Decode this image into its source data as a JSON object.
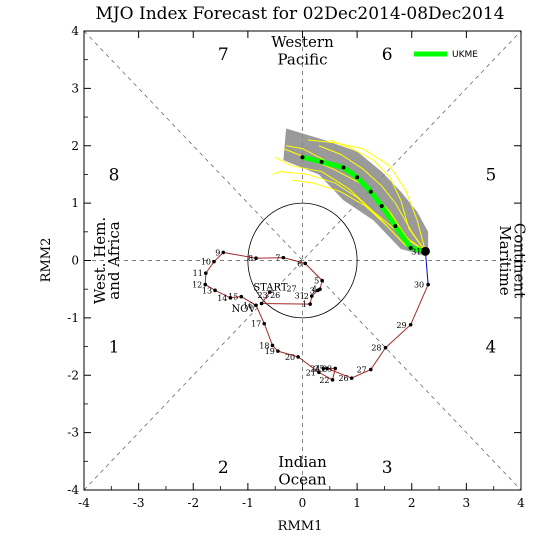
{
  "chart_data": {
    "type": "line",
    "title": "MJO Index Forecast for 02Dec2014-08Dec2014",
    "xlabel": "RMM1",
    "ylabel": "RMM2",
    "xlim": [
      -4,
      4
    ],
    "ylim": [
      -4,
      4
    ],
    "xticks": [
      "-4",
      "-3",
      "-2",
      "-1",
      "0",
      "1",
      "2",
      "3",
      "4"
    ],
    "yticks": [
      "-4",
      "-3",
      "-2",
      "-1",
      "0",
      "1",
      "2",
      "3",
      "4"
    ],
    "phases": [
      {
        "label": "1",
        "x": -3.45,
        "y": -1.5
      },
      {
        "label": "2",
        "x": -1.45,
        "y": -3.6
      },
      {
        "label": "3",
        "x": 1.55,
        "y": -3.6
      },
      {
        "label": "4",
        "x": 3.45,
        "y": -1.5
      },
      {
        "label": "5",
        "x": 3.45,
        "y": 1.5
      },
      {
        "label": "6",
        "x": 1.55,
        "y": 3.6
      },
      {
        "label": "7",
        "x": -1.45,
        "y": 3.6
      },
      {
        "label": "8",
        "x": -3.45,
        "y": 1.5
      }
    ],
    "regions": {
      "top": [
        "Western",
        "Pacific"
      ],
      "bottom": [
        "Indian",
        "Ocean"
      ],
      "left": [
        "West. Hem.",
        "and Africa"
      ],
      "right": [
        "Maritime",
        "Continent"
      ]
    },
    "observed": {
      "start_label": "START",
      "nov_label": "NOV",
      "color": "#a52a2a",
      "points": [
        {
          "label": "",
          "x": -0.6,
          "y": -0.55
        },
        {
          "label": "",
          "x": -0.75,
          "y": -0.75
        },
        {
          "label": "1",
          "x": 0.14,
          "y": -0.76
        },
        {
          "label": "2",
          "x": 0.17,
          "y": -0.62
        },
        {
          "label": "3",
          "x": 0.28,
          "y": -0.52
        },
        {
          "label": "4",
          "x": 0.32,
          "y": -0.5
        },
        {
          "label": "5",
          "x": 0.36,
          "y": -0.35
        },
        {
          "label": "6",
          "x": 0.05,
          "y": -0.05
        },
        {
          "label": "7",
          "x": -0.35,
          "y": 0.05
        },
        {
          "label": "8",
          "x": -0.85,
          "y": 0.04
        },
        {
          "label": "9",
          "x": -1.45,
          "y": 0.14
        },
        {
          "label": "10",
          "x": -1.62,
          "y": -0.02
        },
        {
          "label": "11",
          "x": -1.77,
          "y": -0.22
        },
        {
          "label": "12",
          "x": -1.78,
          "y": -0.42
        },
        {
          "label": "13",
          "x": -1.6,
          "y": -0.52
        },
        {
          "label": "14",
          "x": -1.32,
          "y": -0.65
        },
        {
          "label": "15",
          "x": -1.12,
          "y": -0.63
        },
        {
          "label": "16",
          "x": -0.85,
          "y": -0.78
        },
        {
          "label": "17",
          "x": -0.7,
          "y": -1.1
        },
        {
          "label": "18",
          "x": -0.55,
          "y": -1.48
        },
        {
          "label": "19",
          "x": -0.45,
          "y": -1.58
        },
        {
          "label": "20",
          "x": -0.08,
          "y": -1.68
        },
        {
          "label": "21",
          "x": 0.3,
          "y": -1.95
        },
        {
          "label": "22",
          "x": 0.55,
          "y": -2.08
        },
        {
          "label": "23",
          "x": 0.6,
          "y": -1.88
        },
        {
          "label": "24",
          "x": 0.38,
          "y": -1.88
        },
        {
          "label": "25",
          "x": 0.45,
          "y": -1.88
        },
        {
          "label": "26",
          "x": 0.9,
          "y": -2.05
        },
        {
          "label": "27",
          "x": 1.25,
          "y": -1.9
        },
        {
          "label": "28",
          "x": 1.52,
          "y": -1.52
        },
        {
          "label": "29",
          "x": 1.98,
          "y": -1.12
        },
        {
          "label": "30",
          "x": 2.3,
          "y": -0.42
        },
        {
          "label": "31",
          "x": 2.25,
          "y": 0.16
        }
      ],
      "inner_labels": [
        {
          "label": "23",
          "x": -0.73,
          "y": -0.65
        },
        {
          "label": "26",
          "x": -0.5,
          "y": -0.65
        },
        {
          "label": "27",
          "x": -0.2,
          "y": -0.54
        },
        {
          "label": "31",
          "x": -0.05,
          "y": -0.66
        }
      ]
    },
    "link": {
      "color": "#0000cc",
      "from": [
        2.3,
        -0.42
      ],
      "to": [
        2.25,
        0.16
      ]
    },
    "series": [
      {
        "name": "UKME",
        "color": "#00ff00",
        "values": [
          {
            "x": 2.25,
            "y": 0.16
          },
          {
            "x": 1.98,
            "y": 0.22
          },
          {
            "x": 1.7,
            "y": 0.6
          },
          {
            "x": 1.45,
            "y": 0.95
          },
          {
            "x": 1.25,
            "y": 1.2
          },
          {
            "x": 1.0,
            "y": 1.45
          },
          {
            "x": 0.75,
            "y": 1.62
          },
          {
            "x": 0.35,
            "y": 1.72
          },
          {
            "x": 0.0,
            "y": 1.8
          }
        ]
      }
    ],
    "ensemble_color": "#ffff00",
    "spread_color": "#888888"
  }
}
